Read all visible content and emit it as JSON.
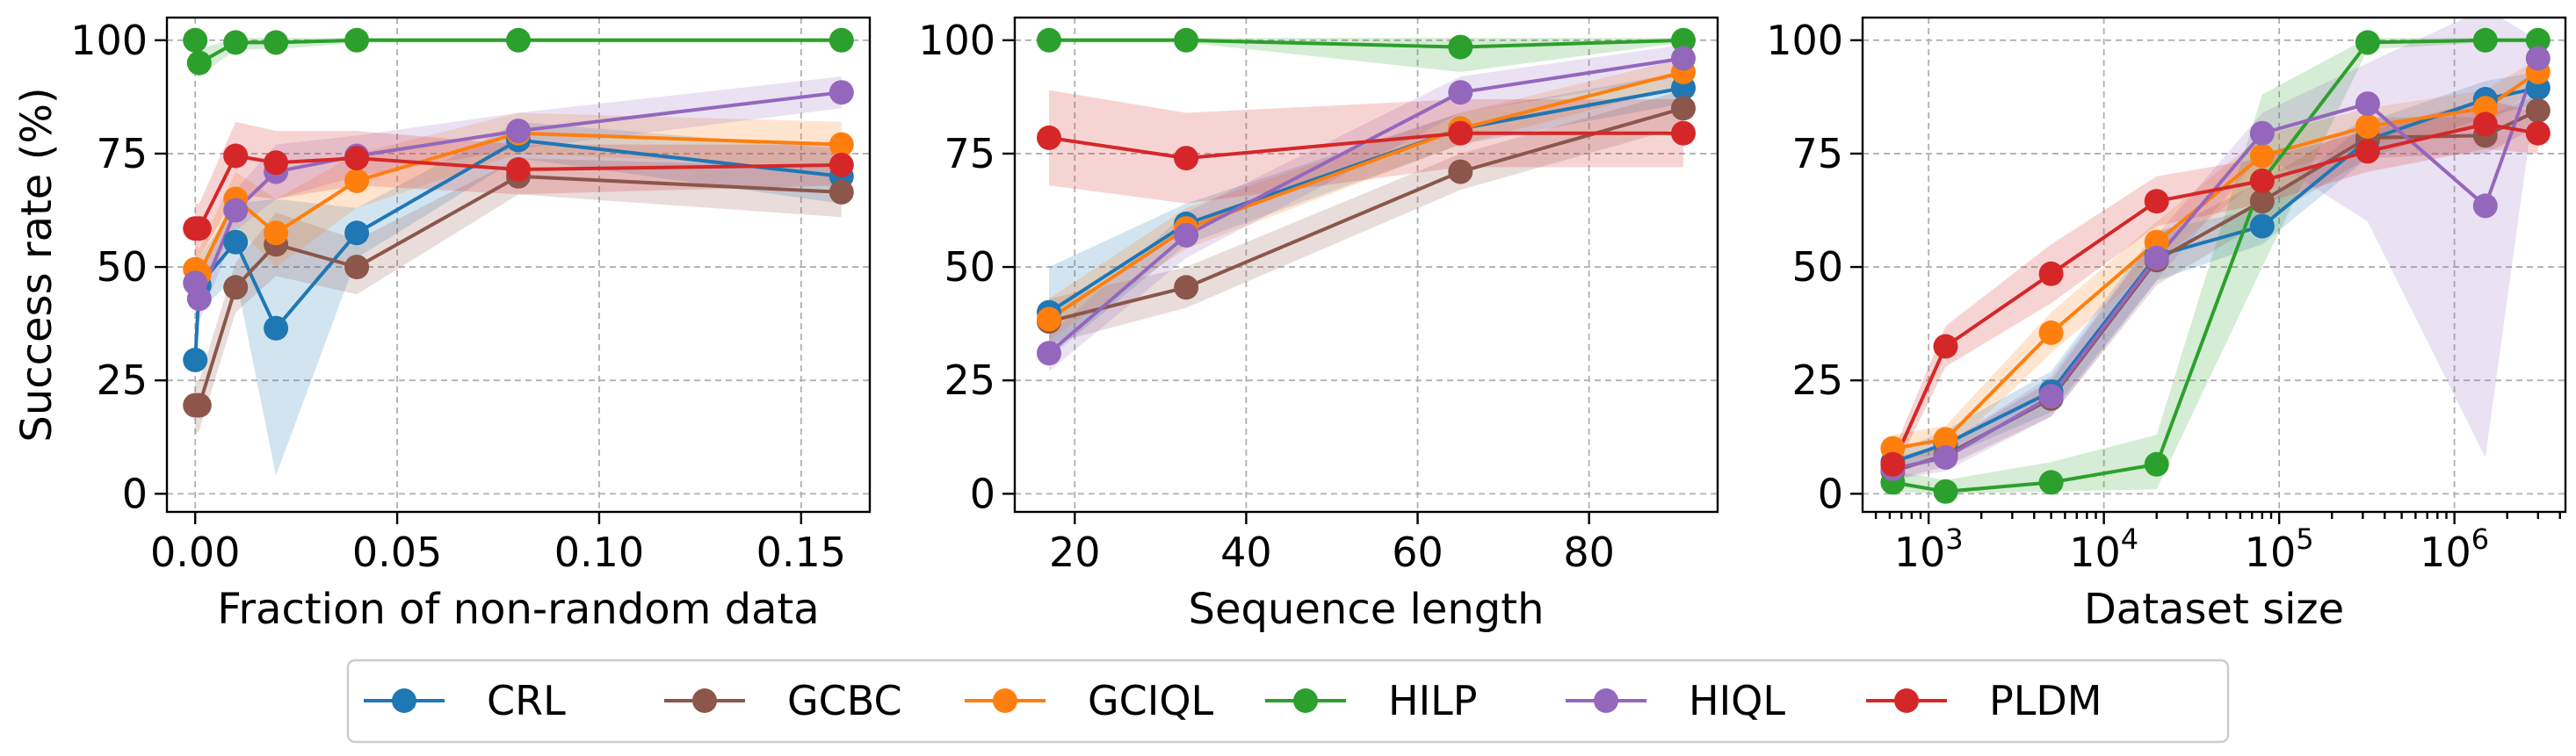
{
  "colors": {
    "CRL": "#1f77b4",
    "GCBC": "#8c564b",
    "GCIQL": "#ff7f0e",
    "HILP": "#2ca02c",
    "HIQL": "#9467bd",
    "PLDM": "#d62728"
  },
  "legend": [
    "CRL",
    "GCBC",
    "GCIQL",
    "HILP",
    "HIQL",
    "PLDM"
  ],
  "legend_placement": "bottom-center",
  "chart_data": [
    {
      "type": "line",
      "ylabel": "Success rate (%)",
      "xlabel": "Fraction of non-random data",
      "xscale": "linear",
      "xlim": [
        -0.007,
        0.167
      ],
      "ylim": [
        -4,
        105
      ],
      "xticks": [
        0.0,
        0.05,
        0.1,
        0.15
      ],
      "xtick_labels": [
        "0.00",
        "0.05",
        "0.10",
        "0.15"
      ],
      "yticks": [
        0,
        25,
        50,
        75,
        100
      ],
      "ytick_labels": [
        "0",
        "25",
        "50",
        "75",
        "100"
      ],
      "grid": true,
      "series": [
        {
          "name": "CRL",
          "x": [
            0.0,
            0.001,
            0.01,
            0.02,
            0.04,
            0.08,
            0.16
          ],
          "y": [
            29.5,
            46,
            55.5,
            36.5,
            57.5,
            78,
            70
          ],
          "lower": [
            26,
            40,
            48,
            4,
            52,
            74,
            64
          ],
          "upper": [
            33,
            52,
            64,
            65,
            63,
            82,
            76
          ]
        },
        {
          "name": "GCBC",
          "x": [
            0.0,
            0.001,
            0.01,
            0.02,
            0.04,
            0.08,
            0.16
          ],
          "y": [
            19.5,
            19.5,
            45.5,
            55,
            50,
            70,
            66.5
          ],
          "lower": [
            13,
            14,
            40,
            48,
            44,
            66,
            61
          ],
          "upper": [
            25,
            25,
            51,
            62,
            56,
            74,
            72
          ]
        },
        {
          "name": "GCIQL",
          "x": [
            0.0,
            0.001,
            0.01,
            0.02,
            0.04,
            0.08,
            0.16
          ],
          "y": [
            49.5,
            48.5,
            65,
            57.5,
            69,
            79.5,
            77
          ],
          "lower": [
            44,
            43,
            59,
            50,
            63,
            75,
            72
          ],
          "upper": [
            55,
            54,
            71,
            65,
            75,
            84,
            82
          ]
        },
        {
          "name": "HILP",
          "x": [
            0.0,
            0.001,
            0.01,
            0.02,
            0.04,
            0.08,
            0.16
          ],
          "y": [
            100,
            95,
            99.5,
            99.5,
            100,
            100,
            100
          ],
          "lower": [
            98,
            92,
            98,
            98,
            99.5,
            99.5,
            99.5
          ],
          "upper": [
            100.5,
            98,
            100.5,
            100.5,
            100.5,
            100.5,
            100.5
          ]
        },
        {
          "name": "HIQL",
          "x": [
            0.0,
            0.001,
            0.01,
            0.02,
            0.04,
            0.08,
            0.16
          ],
          "y": [
            46.5,
            43,
            62.5,
            71,
            74.5,
            80,
            88.5
          ],
          "lower": [
            40,
            38,
            58,
            65,
            70,
            76,
            85
          ],
          "upper": [
            52,
            48,
            67,
            77,
            79,
            84,
            92
          ]
        },
        {
          "name": "PLDM",
          "x": [
            0.0,
            0.001,
            0.01,
            0.02,
            0.04,
            0.08,
            0.16
          ],
          "y": [
            58.5,
            58.5,
            74.5,
            73,
            74,
            71.5,
            72.5
          ],
          "lower": [
            52,
            52,
            66,
            65,
            68,
            66,
            68
          ],
          "upper": [
            64,
            64,
            82,
            80,
            80,
            77,
            77
          ]
        }
      ]
    },
    {
      "type": "line",
      "ylabel": "",
      "xlabel": "Sequence length",
      "xscale": "linear",
      "xlim": [
        13,
        95
      ],
      "ylim": [
        -4,
        105
      ],
      "xticks": [
        20,
        40,
        60,
        80
      ],
      "xtick_labels": [
        "20",
        "40",
        "60",
        "80"
      ],
      "yticks": [
        0,
        25,
        50,
        75,
        100
      ],
      "ytick_labels": [
        "0",
        "25",
        "50",
        "75",
        "100"
      ],
      "grid": true,
      "series": [
        {
          "name": "CRL",
          "x": [
            17,
            33,
            65,
            91
          ],
          "y": [
            40,
            59.5,
            80.5,
            89.5
          ],
          "lower": [
            30,
            55,
            77,
            86
          ],
          "upper": [
            50,
            64,
            84,
            93
          ]
        },
        {
          "name": "GCBC",
          "x": [
            17,
            33,
            65,
            91
          ],
          "y": [
            38,
            45.5,
            71,
            85
          ],
          "lower": [
            33,
            41,
            67,
            81
          ],
          "upper": [
            43,
            50,
            75,
            89
          ]
        },
        {
          "name": "GCIQL",
          "x": [
            17,
            33,
            65,
            91
          ],
          "y": [
            38.5,
            58.5,
            80.5,
            93
          ],
          "lower": [
            34,
            54,
            77,
            90
          ],
          "upper": [
            43,
            63,
            84,
            96
          ]
        },
        {
          "name": "HILP",
          "x": [
            17,
            33,
            65,
            91
          ],
          "y": [
            100,
            100,
            98.5,
            100
          ],
          "lower": [
            99.5,
            99.5,
            93,
            99.5
          ],
          "upper": [
            100.5,
            100.5,
            100.5,
            100.5
          ]
        },
        {
          "name": "HIQL",
          "x": [
            17,
            33,
            65,
            91
          ],
          "y": [
            31,
            57,
            88.5,
            96
          ],
          "lower": [
            27,
            52,
            84,
            92
          ],
          "upper": [
            35,
            62,
            92,
            99
          ]
        },
        {
          "name": "PLDM",
          "x": [
            17,
            33,
            65,
            91
          ],
          "y": [
            78.5,
            74,
            79.5,
            79.5
          ],
          "lower": [
            68,
            64,
            72,
            72
          ],
          "upper": [
            89,
            84,
            87,
            87
          ]
        }
      ]
    },
    {
      "type": "line",
      "ylabel": "",
      "xlabel": "Dataset size",
      "xscale": "log",
      "xlim": [
        420,
        4300000
      ],
      "ylim": [
        -4,
        105
      ],
      "xticks": [
        1000,
        10000,
        100000,
        1000000
      ],
      "xtick_labels": [
        [
          "10",
          "3"
        ],
        [
          "10",
          "4"
        ],
        [
          "10",
          "5"
        ],
        [
          "10",
          "6"
        ]
      ],
      "yticks": [
        0,
        25,
        50,
        75,
        100
      ],
      "ytick_labels": [
        "0",
        "25",
        "50",
        "75",
        "100"
      ],
      "grid": true,
      "series": [
        {
          "name": "CRL",
          "x": [
            625,
            1250,
            5000,
            20000,
            80000,
            320000,
            1500000,
            3000000
          ],
          "y": [
            7,
            11,
            22.5,
            52.5,
            59,
            78,
            87,
            89.5
          ],
          "lower": [
            5,
            8,
            18,
            47,
            55,
            74,
            83,
            86
          ],
          "upper": [
            9,
            14,
            27,
            58,
            63,
            82,
            91,
            93
          ]
        },
        {
          "name": "GCBC",
          "x": [
            625,
            1250,
            5000,
            20000,
            80000,
            320000,
            1500000,
            3000000
          ],
          "y": [
            5,
            8.5,
            21,
            51.5,
            64.5,
            78.5,
            79,
            84.5
          ],
          "lower": [
            3,
            6,
            17,
            46,
            60,
            74,
            75,
            81
          ],
          "upper": [
            7,
            11,
            25,
            57,
            69,
            83,
            83,
            88
          ]
        },
        {
          "name": "GCIQL",
          "x": [
            625,
            1250,
            5000,
            20000,
            80000,
            320000,
            1500000,
            3000000
          ],
          "y": [
            10,
            12,
            35.5,
            55.5,
            74.5,
            81,
            85,
            93
          ],
          "lower": [
            7,
            9,
            31,
            51,
            70,
            77,
            81,
            90
          ],
          "upper": [
            13,
            15,
            40,
            60,
            79,
            85,
            89,
            96
          ]
        },
        {
          "name": "HILP",
          "x": [
            625,
            1250,
            5000,
            20000,
            80000,
            320000,
            1500000,
            3000000
          ],
          "y": [
            2.5,
            0.5,
            2.5,
            6.5,
            69,
            99.5,
            100,
            100
          ],
          "lower": [
            0.5,
            0,
            0.5,
            1,
            50,
            98,
            99.5,
            99.5
          ],
          "upper": [
            5,
            3,
            7,
            13,
            88,
            100.5,
            100.5,
            100.5
          ]
        },
        {
          "name": "HIQL",
          "x": [
            625,
            1250,
            5000,
            20000,
            80000,
            320000,
            1500000,
            3000000
          ],
          "y": [
            5.5,
            8,
            21.5,
            52,
            79.5,
            86,
            63.5,
            96
          ],
          "lower": [
            3,
            5,
            17,
            47,
            75,
            60,
            8,
            92
          ],
          "upper": [
            8,
            11,
            26,
            57,
            84,
            95,
            107,
            100
          ]
        },
        {
          "name": "PLDM",
          "x": [
            625,
            1250,
            5000,
            20000,
            80000,
            320000,
            1500000,
            3000000
          ],
          "y": [
            6.5,
            32.5,
            48.5,
            64.5,
            69,
            75.5,
            81.5,
            79.5
          ],
          "lower": [
            4,
            28,
            42,
            59,
            64,
            71,
            76,
            75
          ],
          "upper": [
            9,
            37,
            55,
            70,
            74,
            80,
            87,
            84
          ]
        }
      ]
    }
  ]
}
